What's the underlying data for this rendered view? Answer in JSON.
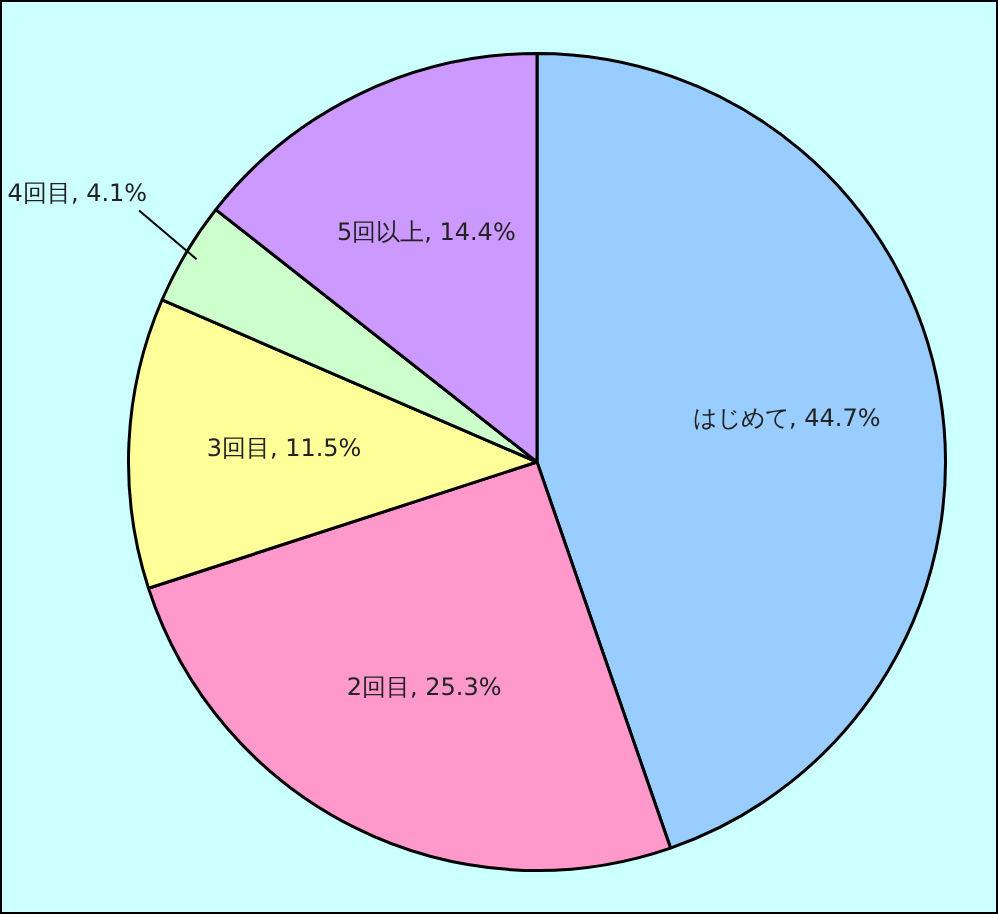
{
  "chart_data": {
    "type": "pie",
    "categories": [
      "はじめて",
      "2回目",
      "3回目",
      "4回目",
      "5回以上"
    ],
    "values": [
      44.7,
      25.3,
      11.5,
      4.1,
      14.4
    ],
    "colors": [
      "#99ccff",
      "#ff99cc",
      "#ffff99",
      "#ccffcc",
      "#cc99ff"
    ],
    "value_labels": [
      "44.7%",
      "25.3%",
      "11.5%",
      "4.1%",
      "14.4%"
    ],
    "legend": false
  }
}
